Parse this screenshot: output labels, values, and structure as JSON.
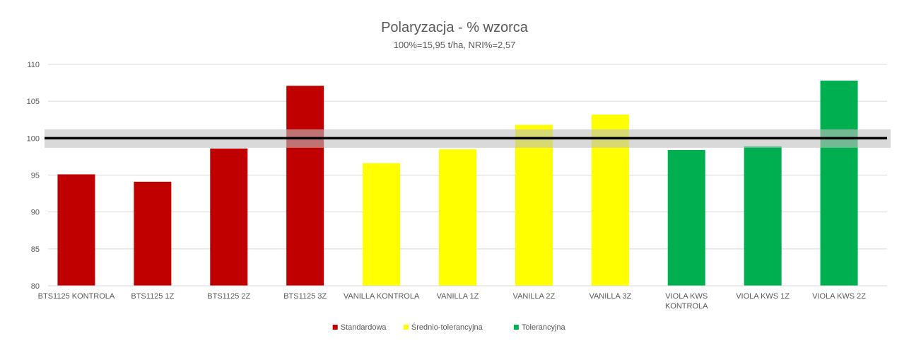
{
  "chart_data": {
    "type": "bar",
    "title": "Polaryzacja - % wzorca",
    "subtitle": "100%=15,95 t/ha, NRI%=2,57",
    "ylim": [
      80,
      110
    ],
    "yticks": [
      80,
      85,
      90,
      95,
      100,
      105,
      110
    ],
    "grid": true,
    "categories": [
      "BTS1125 KONTROLA",
      "BTS1125 1Z",
      "BTS1125 2Z",
      "BTS1125 3Z",
      "VANILLA KONTROLA",
      "VANILLA 1Z",
      "VANILLA 2Z",
      "VANILLA 3Z",
      "VIOLA KWS KONTROLA",
      "VIOLA KWS 1Z",
      "VIOLA KWS 2Z"
    ],
    "category_lines": [
      [
        "BTS1125 KONTROLA"
      ],
      [
        "BTS1125 1Z"
      ],
      [
        "BTS1125 2Z"
      ],
      [
        "BTS1125 3Z"
      ],
      [
        "VANILLA KONTROLA"
      ],
      [
        "VANILLA 1Z"
      ],
      [
        "VANILLA 2Z"
      ],
      [
        "VANILLA 3Z"
      ],
      [
        "VIOLA KWS",
        "KONTROLA"
      ],
      [
        "VIOLA KWS 1Z"
      ],
      [
        "VIOLA KWS 2Z"
      ]
    ],
    "series": [
      {
        "name": "Standardowa",
        "color": "#C00000",
        "values": [
          95.1,
          94.1,
          98.6,
          107.1,
          null,
          null,
          null,
          null,
          null,
          null,
          null
        ]
      },
      {
        "name": "Średnio-tolerancyjna",
        "color": "#FFFF00",
        "values": [
          null,
          null,
          null,
          null,
          96.6,
          98.5,
          101.8,
          103.2,
          null,
          null,
          null
        ]
      },
      {
        "name": "Tolerancyjna",
        "color": "#00B050",
        "values": [
          null,
          null,
          null,
          null,
          null,
          null,
          null,
          null,
          98.4,
          98.9,
          107.8
        ]
      }
    ],
    "reference_line": {
      "value": 100,
      "band": [
        98.7,
        101.2
      ],
      "line_color": "#000000",
      "band_color": "#BFBFBF"
    },
    "legend_position": "bottom"
  }
}
